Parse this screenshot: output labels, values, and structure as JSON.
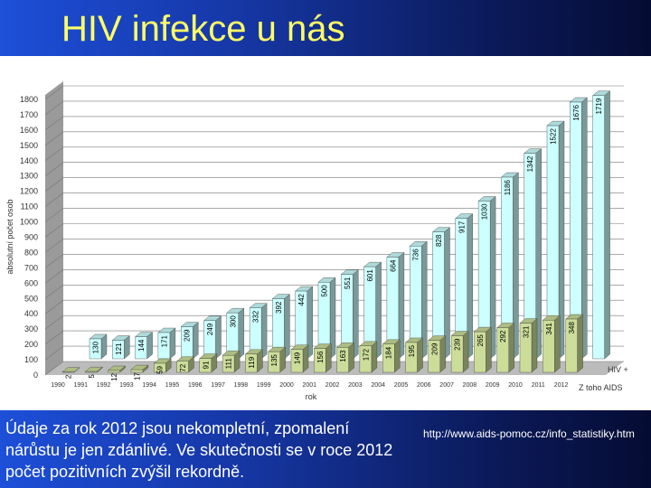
{
  "title": "HIV infekce u nás",
  "note": "Údaje za rok 2012 jsou nekompletní, zpomalení nárůstu je jen zdánlivé. Ve skutečnosti se v roce 2012 počet pozitivních zvýšil rekordně.",
  "source": "http://www.aids-pomoc.cz/info_statistiky.htm",
  "chart_data": {
    "type": "bar3d",
    "x_label": "rok",
    "y_label": "absolutní počet osob",
    "categories": [
      "1990",
      "1991",
      "1992",
      "1993",
      "1994",
      "1995",
      "1996",
      "1997",
      "1998",
      "1999",
      "2000",
      "2001",
      "2002",
      "2003",
      "2004",
      "2005",
      "2006",
      "2007",
      "2008",
      "2009",
      "2010",
      "2011",
      "2012"
    ],
    "series": [
      {
        "name": "HIV +",
        "color": "#ccffff",
        "values": [
          130,
          121,
          144,
          171,
          209,
          249,
          300,
          332,
          392,
          442,
          500,
          551,
          601,
          664,
          736,
          828,
          917,
          1030,
          1186,
          1342,
          1522,
          1676,
          1719
        ]
      },
      {
        "name": "Z toho AIDS",
        "color": "#ccdd99",
        "values": [
          2,
          5,
          12,
          17,
          59,
          72,
          91,
          111,
          119,
          135,
          149,
          156,
          163,
          172,
          184,
          195,
          209,
          239,
          265,
          292,
          321,
          341,
          348
        ]
      }
    ],
    "ylim": [
      0,
      1800
    ],
    "yticks": [
      0,
      100,
      200,
      300,
      400,
      500,
      600,
      700,
      800,
      900,
      1000,
      1100,
      1200,
      1300,
      1400,
      1500,
      1600,
      1700,
      1800
    ],
    "grid": true
  }
}
